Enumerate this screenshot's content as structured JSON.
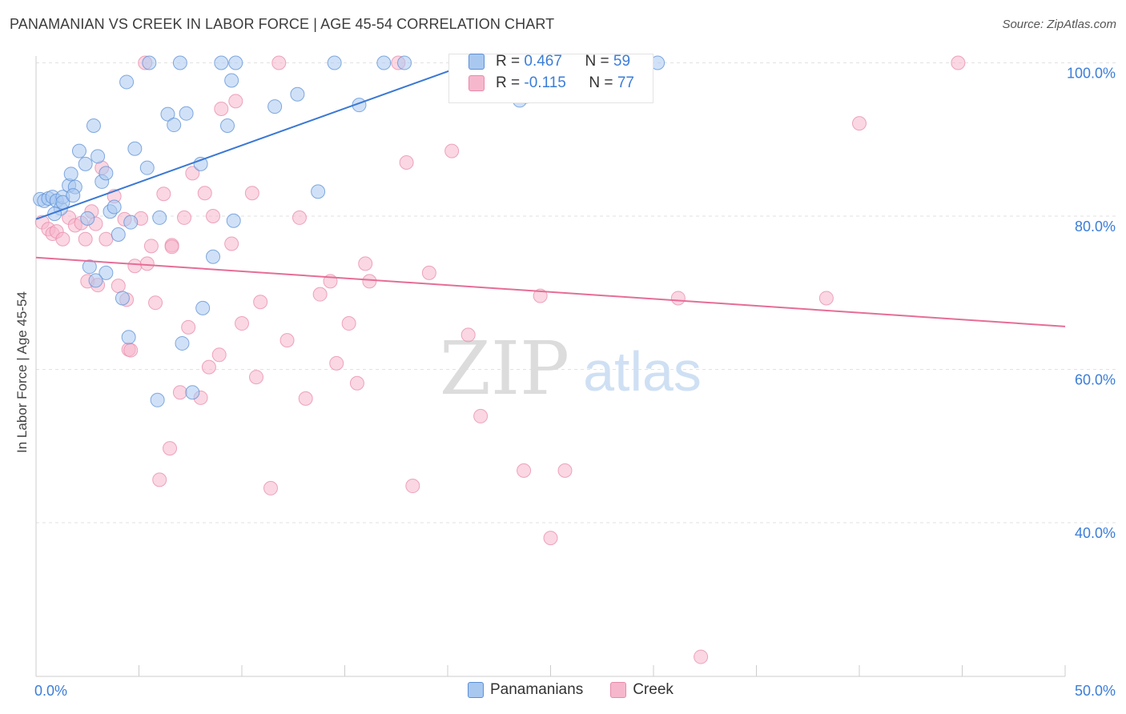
{
  "title": "PANAMANIAN VS CREEK IN LABOR FORCE | AGE 45-54 CORRELATION CHART",
  "source": "Source: ZipAtlas.com",
  "watermark": {
    "zip": "ZIP",
    "atlas": "atlas"
  },
  "colors": {
    "blue_fill": "#a9c8f0",
    "blue_stroke": "#5b8fd6",
    "blue_line": "#3a78d4",
    "pink_fill": "#f6b7cc",
    "pink_stroke": "#e88aaa",
    "pink_line": "#e66d98",
    "grid": "#e2e2e2",
    "tick_label": "#3b7dd8"
  },
  "stats": {
    "r_label": "R =",
    "n_label": "N =",
    "panamanians": {
      "r": "0.467",
      "n": "59"
    },
    "creek": {
      "r": "-0.115",
      "n": "77"
    }
  },
  "legend": {
    "panamanians": "Panamanians",
    "creek": "Creek"
  },
  "chart_data": {
    "type": "scatter",
    "title": "PANAMANIAN VS CREEK IN LABOR FORCE | AGE 45-54 CORRELATION CHART",
    "xlabel": "",
    "ylabel": "In Labor Force | Age 45-54",
    "xlim": [
      0,
      50
    ],
    "ylim": [
      20,
      102
    ],
    "x_tick_labels": [
      "0.0%",
      "50.0%"
    ],
    "y_ticks": [
      40,
      60,
      80,
      100
    ],
    "y_tick_labels": [
      "40.0%",
      "60.0%",
      "80.0%",
      "100.0%"
    ],
    "grid": true,
    "legend_position": "bottom",
    "series": [
      {
        "name": "Panamanians",
        "color": "#a9c8f0",
        "trend": {
          "x": [
            0,
            22
          ],
          "y": [
            79.6,
            100.8
          ]
        },
        "points": [
          [
            0.2,
            82.2
          ],
          [
            0.4,
            82.0
          ],
          [
            0.6,
            82.3
          ],
          [
            0.8,
            82.5
          ],
          [
            1.0,
            82.0
          ],
          [
            1.2,
            81.0
          ],
          [
            1.3,
            82.5
          ],
          [
            1.6,
            84.0
          ],
          [
            1.7,
            85.5
          ],
          [
            1.9,
            83.8
          ],
          [
            2.1,
            88.5
          ],
          [
            2.4,
            86.8
          ],
          [
            2.8,
            91.8
          ],
          [
            3.0,
            87.8
          ],
          [
            3.2,
            84.5
          ],
          [
            3.4,
            85.6
          ],
          [
            3.6,
            80.6
          ],
          [
            3.8,
            81.2
          ],
          [
            4.0,
            77.6
          ],
          [
            4.4,
            97.5
          ],
          [
            4.6,
            79.2
          ],
          [
            4.8,
            88.8
          ],
          [
            5.5,
            100.0
          ],
          [
            5.4,
            86.3
          ],
          [
            6.0,
            79.8
          ],
          [
            6.4,
            93.3
          ],
          [
            6.7,
            91.9
          ],
          [
            7.0,
            100.0
          ],
          [
            7.3,
            93.4
          ],
          [
            8.0,
            86.8
          ],
          [
            9.0,
            100.0
          ],
          [
            9.5,
            97.7
          ],
          [
            9.3,
            91.8
          ],
          [
            9.7,
            100.0
          ],
          [
            9.6,
            79.4
          ],
          [
            11.6,
            94.3
          ],
          [
            12.7,
            95.9
          ],
          [
            13.7,
            83.2
          ],
          [
            14.5,
            100.0
          ],
          [
            15.7,
            94.5
          ],
          [
            16.9,
            100.0
          ],
          [
            17.9,
            100.0
          ],
          [
            22.9,
            100.0
          ],
          [
            23.5,
            95.1
          ],
          [
            30.2,
            100.0
          ],
          [
            2.6,
            73.4
          ],
          [
            3.4,
            72.6
          ],
          [
            2.9,
            71.6
          ],
          [
            4.2,
            69.3
          ],
          [
            4.5,
            64.2
          ],
          [
            5.9,
            56.0
          ],
          [
            7.1,
            63.4
          ],
          [
            7.6,
            57.0
          ],
          [
            8.1,
            68.0
          ],
          [
            8.6,
            74.7
          ],
          [
            1.3,
            81.8
          ],
          [
            0.9,
            80.3
          ],
          [
            1.8,
            82.7
          ],
          [
            2.5,
            79.7
          ]
        ]
      },
      {
        "name": "Creek",
        "color": "#f6b7cc",
        "trend": {
          "x": [
            0,
            50
          ],
          "y": [
            74.6,
            65.6
          ]
        },
        "points": [
          [
            0.3,
            79.2
          ],
          [
            0.6,
            78.3
          ],
          [
            0.8,
            77.7
          ],
          [
            1.0,
            78.0
          ],
          [
            1.3,
            77.0
          ],
          [
            1.6,
            79.8
          ],
          [
            1.9,
            78.8
          ],
          [
            2.2,
            79.1
          ],
          [
            2.4,
            77.0
          ],
          [
            2.7,
            80.6
          ],
          [
            2.9,
            79.0
          ],
          [
            3.2,
            86.3
          ],
          [
            3.4,
            77.0
          ],
          [
            3.8,
            82.6
          ],
          [
            4.0,
            70.9
          ],
          [
            4.3,
            79.6
          ],
          [
            4.4,
            69.1
          ],
          [
            4.5,
            62.6
          ],
          [
            4.8,
            73.5
          ],
          [
            5.1,
            79.7
          ],
          [
            5.3,
            100.0
          ],
          [
            5.4,
            73.8
          ],
          [
            5.6,
            76.1
          ],
          [
            5.8,
            68.7
          ],
          [
            6.2,
            82.9
          ],
          [
            6.5,
            49.7
          ],
          [
            6.6,
            76.2
          ],
          [
            7.0,
            57.0
          ],
          [
            7.2,
            79.8
          ],
          [
            7.4,
            65.5
          ],
          [
            7.6,
            85.6
          ],
          [
            8.0,
            56.3
          ],
          [
            8.2,
            83.0
          ],
          [
            8.4,
            60.3
          ],
          [
            8.6,
            80.0
          ],
          [
            8.9,
            61.9
          ],
          [
            9.0,
            94.0
          ],
          [
            9.5,
            76.4
          ],
          [
            9.7,
            95.0
          ],
          [
            10.0,
            66.0
          ],
          [
            10.5,
            83.0
          ],
          [
            10.7,
            59.0
          ],
          [
            10.9,
            68.8
          ],
          [
            11.4,
            44.5
          ],
          [
            11.8,
            100.0
          ],
          [
            12.2,
            63.8
          ],
          [
            12.8,
            79.8
          ],
          [
            13.1,
            56.2
          ],
          [
            13.8,
            69.8
          ],
          [
            14.3,
            71.5
          ],
          [
            14.6,
            60.8
          ],
          [
            15.2,
            66.0
          ],
          [
            15.6,
            58.2
          ],
          [
            16.0,
            73.8
          ],
          [
            16.2,
            71.5
          ],
          [
            17.6,
            100.0
          ],
          [
            18.0,
            87.0
          ],
          [
            18.3,
            44.8
          ],
          [
            19.1,
            72.6
          ],
          [
            20.2,
            88.5
          ],
          [
            21.0,
            64.5
          ],
          [
            21.6,
            53.9
          ],
          [
            23.8,
            95.6
          ],
          [
            23.7,
            46.8
          ],
          [
            24.5,
            69.6
          ],
          [
            25.0,
            38.0
          ],
          [
            25.7,
            46.8
          ],
          [
            31.2,
            69.3
          ],
          [
            32.3,
            22.5
          ],
          [
            38.4,
            69.3
          ],
          [
            40.0,
            92.1
          ],
          [
            44.8,
            100.0
          ],
          [
            6.0,
            45.6
          ],
          [
            4.6,
            62.5
          ],
          [
            2.5,
            71.5
          ],
          [
            3.0,
            71.0
          ],
          [
            6.6,
            76.0
          ]
        ]
      }
    ]
  }
}
